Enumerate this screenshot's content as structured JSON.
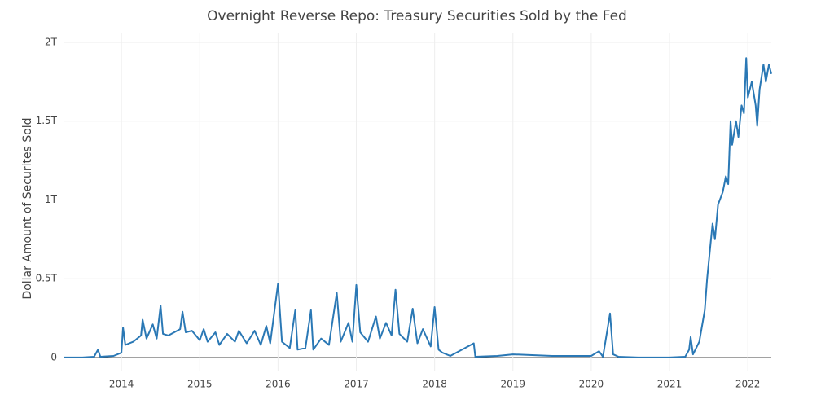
{
  "chart_data": {
    "type": "line",
    "title": "Overnight Reverse Repo: Treasury Securities Sold by the Fed",
    "y_label": "Dollar Amount of Securites Sold",
    "x": [
      2013.26,
      2013.5,
      2013.65,
      2013.7,
      2013.73,
      2013.9,
      2014.0,
      2014.02,
      2014.05,
      2014.15,
      2014.25,
      2014.27,
      2014.32,
      2014.4,
      2014.45,
      2014.5,
      2014.53,
      2014.6,
      2014.75,
      2014.78,
      2014.82,
      2014.9,
      2015.0,
      2015.05,
      2015.1,
      2015.2,
      2015.25,
      2015.35,
      2015.45,
      2015.5,
      2015.6,
      2015.7,
      2015.78,
      2015.85,
      2015.9,
      2016.0,
      2016.05,
      2016.15,
      2016.22,
      2016.25,
      2016.35,
      2016.42,
      2016.45,
      2016.55,
      2016.65,
      2016.75,
      2016.8,
      2016.9,
      2016.95,
      2017.0,
      2017.05,
      2017.15,
      2017.25,
      2017.3,
      2017.38,
      2017.45,
      2017.5,
      2017.55,
      2017.65,
      2017.72,
      2017.78,
      2017.85,
      2017.95,
      2018.0,
      2018.05,
      2018.1,
      2018.2,
      2018.5,
      2018.52,
      2018.8,
      2019.0,
      2019.5,
      2019.9,
      2020.0,
      2020.1,
      2020.15,
      2020.24,
      2020.28,
      2020.35,
      2020.6,
      2021.0,
      2021.2,
      2021.25,
      2021.27,
      2021.3,
      2021.38,
      2021.45,
      2021.48,
      2021.52,
      2021.55,
      2021.58,
      2021.62,
      2021.68,
      2021.72,
      2021.75,
      2021.78,
      2021.8,
      2021.85,
      2021.88,
      2021.92,
      2021.95,
      2021.98,
      2022.0,
      2022.05,
      2022.1,
      2022.12,
      2022.15,
      2022.2,
      2022.23,
      2022.27,
      2022.3
    ],
    "series": [
      {
        "color": "#2a78b5",
        "values": [
          0,
          0,
          0.005,
          0.05,
          0.005,
          0.01,
          0.03,
          0.19,
          0.08,
          0.1,
          0.14,
          0.24,
          0.12,
          0.21,
          0.12,
          0.33,
          0.15,
          0.14,
          0.18,
          0.29,
          0.16,
          0.17,
          0.11,
          0.18,
          0.1,
          0.16,
          0.08,
          0.15,
          0.1,
          0.17,
          0.09,
          0.17,
          0.08,
          0.2,
          0.09,
          0.47,
          0.1,
          0.06,
          0.3,
          0.05,
          0.06,
          0.3,
          0.05,
          0.12,
          0.08,
          0.41,
          0.1,
          0.22,
          0.1,
          0.46,
          0.16,
          0.1,
          0.26,
          0.12,
          0.22,
          0.14,
          0.43,
          0.15,
          0.1,
          0.31,
          0.09,
          0.18,
          0.07,
          0.32,
          0.05,
          0.03,
          0.01,
          0.09,
          0.005,
          0.01,
          0.02,
          0.01,
          0.01,
          0.01,
          0.04,
          0.005,
          0.28,
          0.02,
          0.005,
          0,
          0,
          0.005,
          0.05,
          0.13,
          0.02,
          0.1,
          0.3,
          0.5,
          0.7,
          0.85,
          0.75,
          0.97,
          1.05,
          1.15,
          1.1,
          1.5,
          1.35,
          1.5,
          1.4,
          1.6,
          1.55,
          1.9,
          1.65,
          1.75,
          1.6,
          1.47,
          1.7,
          1.86,
          1.75,
          1.86,
          1.8
        ]
      }
    ],
    "xlim": [
      2013.26,
      2022.3
    ],
    "xticks": [
      2014,
      2015,
      2016,
      2017,
      2018,
      2019,
      2020,
      2021,
      2022
    ],
    "ylim": [
      -0.083,
      2.062
    ],
    "yticks": [
      0,
      {
        "value": 0.5,
        "label": "0.5T"
      },
      {
        "value": 1,
        "label": "1T"
      },
      {
        "value": 1.5,
        "label": "1.5T"
      },
      {
        "value": 2,
        "label": "2T"
      }
    ],
    "grid": true
  }
}
